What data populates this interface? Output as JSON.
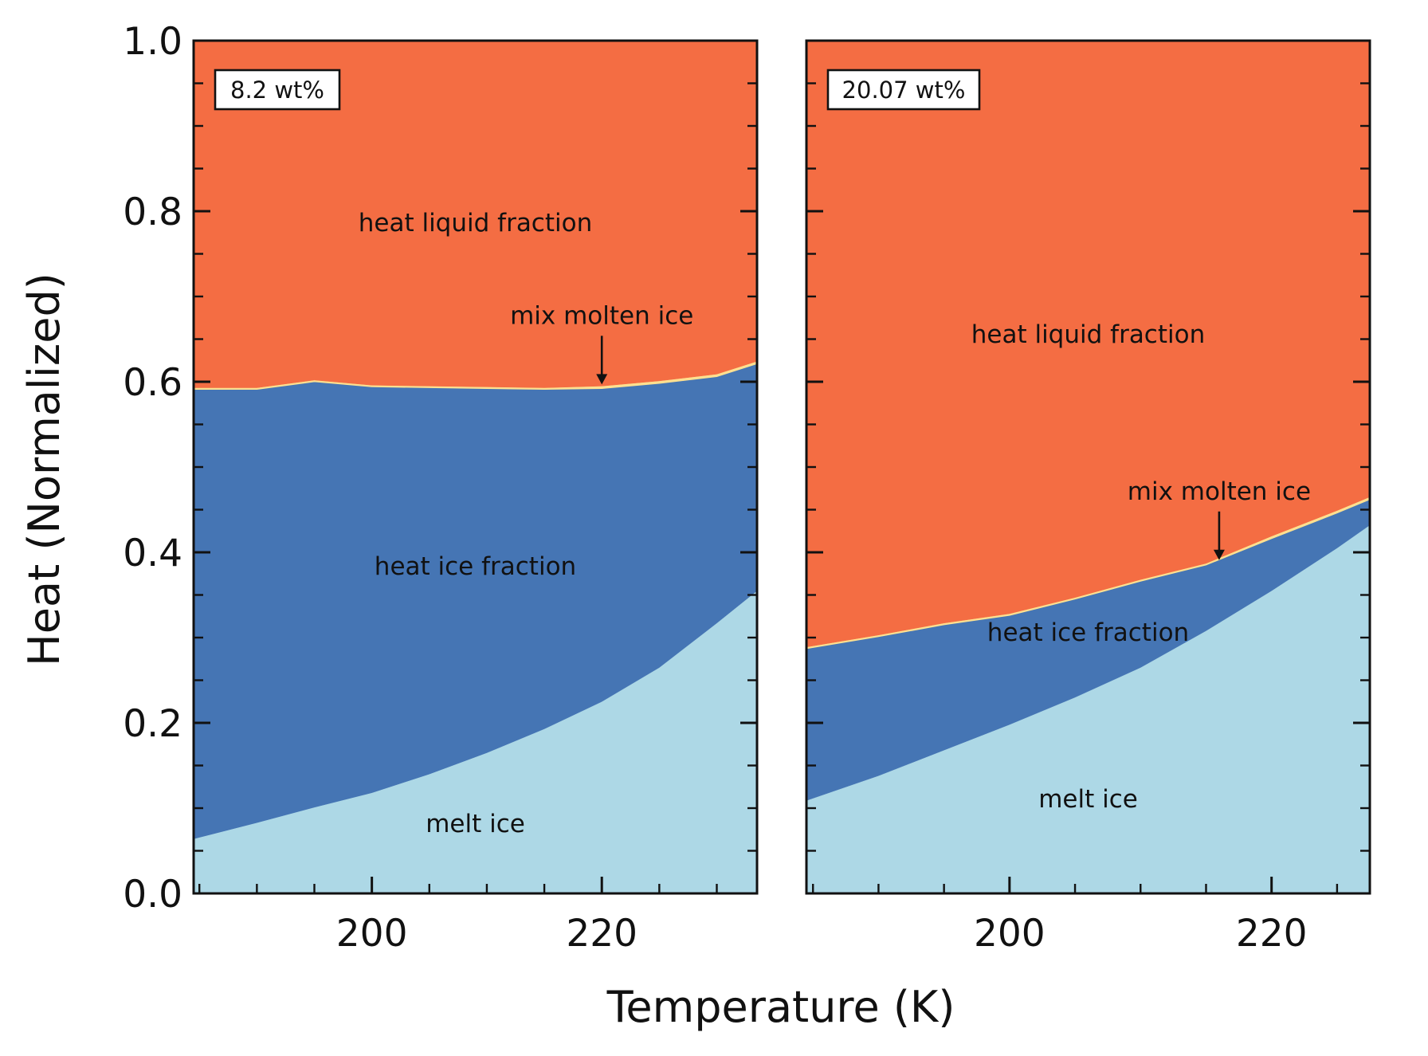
{
  "chart_data": {
    "type": "area",
    "xlabel": "Temperature (K)",
    "ylabel": "Heat (Normalized)",
    "ylim": [
      0,
      1
    ],
    "yticks": [
      0,
      0.2,
      0.4,
      0.6,
      0.8,
      1.0
    ],
    "ytick_labels": [
      "0.0",
      "0.2",
      "0.4",
      "0.6",
      "0.8",
      "1.0"
    ],
    "colors": {
      "melt_ice": "#add8e6",
      "heat_ice_fraction": "#4575b4",
      "mix_molten_ice": "#fee090",
      "heat_liquid_fraction": "#f46d43"
    },
    "panels": [
      {
        "badge": "8.2 wt%",
        "xlim": [
          184.5,
          233.5
        ],
        "xticks": [
          200,
          220
        ],
        "xtick_labels": [
          "200",
          "220"
        ],
        "x": [
          184.5,
          190,
          195,
          200,
          205,
          210,
          215,
          220,
          225,
          230,
          233.5
        ],
        "melt_ice": [
          0.064,
          0.083,
          0.101,
          0.118,
          0.14,
          0.165,
          0.193,
          0.225,
          0.265,
          0.317,
          0.355
        ],
        "heat_ice_fraction": [
          0.527,
          0.508,
          0.499,
          0.476,
          0.453,
          0.427,
          0.398,
          0.367,
          0.333,
          0.289,
          0.266
        ],
        "mix_molten_ice": [
          0.002,
          0.002,
          0.002,
          0.002,
          0.002,
          0.002,
          0.002,
          0.003,
          0.003,
          0.003,
          0.003
        ],
        "heat_liquid_fraction": [
          0.407,
          0.407,
          0.398,
          0.404,
          0.405,
          0.406,
          0.407,
          0.405,
          0.399,
          0.391,
          0.376
        ],
        "series_labels": [
          "melt ice",
          "heat ice fraction",
          "heat liquid fraction"
        ],
        "annotation": {
          "text": "mix molten ice",
          "x": 220,
          "y": 0.595
        }
      },
      {
        "badge": "20.07 wt%",
        "xlim": [
          184.5,
          227.5
        ],
        "xticks": [
          200,
          220
        ],
        "xtick_labels": [
          "200",
          "220"
        ],
        "x": [
          184.5,
          190,
          195,
          200,
          205,
          210,
          215,
          220,
          225,
          227.5
        ],
        "melt_ice": [
          0.109,
          0.138,
          0.168,
          0.198,
          0.23,
          0.265,
          0.308,
          0.355,
          0.405,
          0.432
        ],
        "heat_ice_fraction": [
          0.178,
          0.163,
          0.147,
          0.128,
          0.115,
          0.101,
          0.077,
          0.061,
          0.041,
          0.03
        ],
        "mix_molten_ice": [
          0.002,
          0.002,
          0.002,
          0.002,
          0.002,
          0.002,
          0.002,
          0.003,
          0.003,
          0.003
        ],
        "heat_liquid_fraction": [
          0.711,
          0.697,
          0.683,
          0.672,
          0.653,
          0.632,
          0.613,
          0.581,
          0.551,
          0.535
        ],
        "series_labels": [
          "melt ice",
          "heat ice fraction",
          "heat liquid fraction"
        ],
        "annotation": {
          "text": "mix molten ice",
          "x": 216,
          "y": 0.389
        }
      }
    ]
  }
}
